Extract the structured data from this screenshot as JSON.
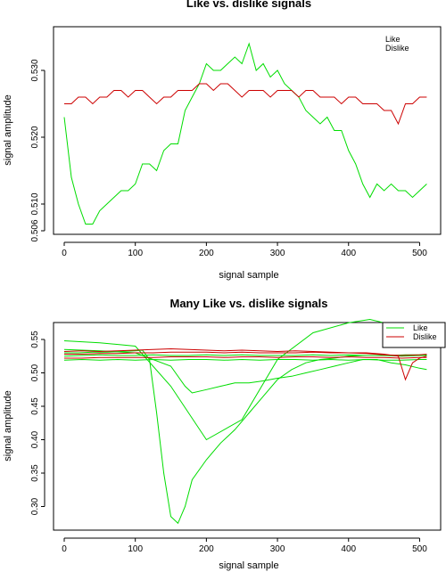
{
  "chart_data": [
    {
      "type": "line",
      "title": "Like vs. dislike signals",
      "xlabel": "signal sample",
      "ylabel": "signal amplitude",
      "xlim": [
        0,
        512
      ],
      "ylim": [
        0.506,
        0.536
      ],
      "xticks": [
        0,
        100,
        200,
        300,
        400,
        500
      ],
      "yticks": [
        0.506,
        0.51,
        0.52,
        0.53
      ],
      "ytick_labels": [
        "0.506",
        "0.510",
        "0.520",
        "0.530"
      ],
      "legend": {
        "position": "top-right",
        "entries": [
          "Like",
          "Dislike"
        ]
      },
      "series": [
        {
          "name": "Like",
          "color": "#00dd00",
          "x": [
            0,
            10,
            20,
            30,
            40,
            50,
            60,
            70,
            80,
            90,
            100,
            110,
            120,
            130,
            140,
            150,
            160,
            170,
            180,
            190,
            200,
            210,
            220,
            230,
            240,
            250,
            260,
            270,
            280,
            290,
            300,
            310,
            320,
            330,
            340,
            350,
            360,
            370,
            380,
            390,
            400,
            410,
            420,
            430,
            440,
            450,
            460,
            470,
            480,
            490,
            500,
            510
          ],
          "y": [
            0.523,
            0.514,
            0.51,
            0.507,
            0.507,
            0.509,
            0.51,
            0.511,
            0.512,
            0.512,
            0.513,
            0.516,
            0.516,
            0.515,
            0.518,
            0.519,
            0.519,
            0.524,
            0.526,
            0.528,
            0.531,
            0.53,
            0.53,
            0.531,
            0.532,
            0.531,
            0.534,
            0.53,
            0.531,
            0.529,
            0.53,
            0.528,
            0.527,
            0.526,
            0.524,
            0.523,
            0.522,
            0.523,
            0.521,
            0.521,
            0.518,
            0.516,
            0.513,
            0.511,
            0.513,
            0.512,
            0.513,
            0.512,
            0.512,
            0.511,
            0.512,
            0.513
          ]
        },
        {
          "name": "Dislike",
          "color": "#cc0000",
          "x": [
            0,
            10,
            20,
            30,
            40,
            50,
            60,
            70,
            80,
            90,
            100,
            110,
            120,
            130,
            140,
            150,
            160,
            170,
            180,
            190,
            200,
            210,
            220,
            230,
            240,
            250,
            260,
            270,
            280,
            290,
            300,
            310,
            320,
            330,
            340,
            350,
            360,
            370,
            380,
            390,
            400,
            410,
            420,
            430,
            440,
            450,
            460,
            470,
            480,
            490,
            500,
            510
          ],
          "y": [
            0.525,
            0.525,
            0.526,
            0.526,
            0.525,
            0.526,
            0.526,
            0.527,
            0.527,
            0.526,
            0.527,
            0.527,
            0.526,
            0.525,
            0.526,
            0.526,
            0.527,
            0.527,
            0.527,
            0.528,
            0.528,
            0.527,
            0.528,
            0.528,
            0.527,
            0.526,
            0.527,
            0.527,
            0.527,
            0.526,
            0.527,
            0.527,
            0.527,
            0.526,
            0.527,
            0.527,
            0.526,
            0.526,
            0.526,
            0.525,
            0.526,
            0.526,
            0.525,
            0.525,
            0.525,
            0.524,
            0.524,
            0.522,
            0.525,
            0.525,
            0.526,
            0.526
          ]
        }
      ]
    },
    {
      "type": "line",
      "title": "Many Like vs. dislike signals",
      "xlabel": "signal sample",
      "ylabel": "signal amplitude",
      "xlim": [
        0,
        512
      ],
      "ylim": [
        0.27,
        0.57
      ],
      "xticks": [
        0,
        100,
        200,
        300,
        400,
        500
      ],
      "yticks": [
        0.3,
        0.35,
        0.4,
        0.45,
        0.5,
        0.55
      ],
      "ytick_labels": [
        "0.30",
        "0.35",
        "0.40",
        "0.45",
        "0.50",
        "0.55"
      ],
      "legend": {
        "position": "top-right",
        "entries": [
          "Like",
          "Dislike"
        ]
      },
      "series": [
        {
          "name": "Like",
          "color": "#00dd00",
          "x": [
            0,
            25,
            50,
            75,
            100,
            125,
            150,
            175,
            200,
            225,
            250,
            275,
            300,
            325,
            350,
            375,
            400,
            425,
            450,
            475,
            500,
            510
          ],
          "y": [
            0.525,
            0.526,
            0.527,
            0.526,
            0.526,
            0.527,
            0.526,
            0.526,
            0.527,
            0.526,
            0.527,
            0.526,
            0.526,
            0.526,
            0.527,
            0.526,
            0.527,
            0.526,
            0.526,
            0.525,
            0.526,
            0.526
          ]
        },
        {
          "name": "Like",
          "color": "#00dd00",
          "x": [
            0,
            25,
            50,
            75,
            100,
            125,
            150,
            175,
            200,
            225,
            250,
            275,
            300,
            325,
            350,
            375,
            400,
            425,
            450,
            475,
            500,
            510
          ],
          "y": [
            0.519,
            0.52,
            0.519,
            0.52,
            0.519,
            0.52,
            0.519,
            0.52,
            0.52,
            0.519,
            0.52,
            0.519,
            0.52,
            0.52,
            0.519,
            0.52,
            0.519,
            0.52,
            0.519,
            0.519,
            0.52,
            0.52
          ]
        },
        {
          "name": "Like",
          "color": "#00dd00",
          "x": [
            0,
            20,
            40,
            60,
            80,
            100,
            110,
            120,
            130,
            140,
            150,
            160,
            170,
            180,
            200,
            220,
            240,
            260,
            280,
            300,
            320,
            340,
            360,
            380,
            400,
            420,
            440,
            460,
            480,
            500,
            510
          ],
          "y": [
            0.53,
            0.53,
            0.531,
            0.531,
            0.532,
            0.533,
            0.534,
            0.52,
            0.44,
            0.35,
            0.285,
            0.275,
            0.3,
            0.34,
            0.37,
            0.395,
            0.415,
            0.44,
            0.465,
            0.49,
            0.505,
            0.515,
            0.52,
            0.522,
            0.525,
            0.526,
            0.526,
            0.526,
            0.527,
            0.527,
            0.527
          ]
        },
        {
          "name": "Like",
          "color": "#00dd00",
          "x": [
            0,
            50,
            100,
            150,
            200,
            250,
            300,
            350,
            400,
            430,
            450,
            475,
            500,
            510
          ],
          "y": [
            0.548,
            0.545,
            0.54,
            0.48,
            0.4,
            0.43,
            0.52,
            0.56,
            0.575,
            0.58,
            0.575,
            0.56,
            0.545,
            0.54
          ]
        },
        {
          "name": "Like",
          "color": "#00dd00",
          "x": [
            0,
            50,
            100,
            150,
            170,
            180,
            200,
            220,
            240,
            260,
            280,
            300,
            320,
            340,
            360,
            380,
            400,
            420,
            440,
            460,
            480,
            500,
            510
          ],
          "y": [
            0.535,
            0.533,
            0.53,
            0.51,
            0.48,
            0.47,
            0.475,
            0.48,
            0.485,
            0.485,
            0.488,
            0.492,
            0.495,
            0.5,
            0.505,
            0.51,
            0.515,
            0.52,
            0.52,
            0.515,
            0.512,
            0.507,
            0.505
          ]
        },
        {
          "name": "Dislike",
          "color": "#cc0000",
          "x": [
            0,
            25,
            50,
            75,
            100,
            125,
            150,
            175,
            200,
            225,
            250,
            275,
            300,
            325,
            350,
            375,
            400,
            425,
            450,
            470,
            480,
            490,
            500,
            510
          ],
          "y": [
            0.528,
            0.528,
            0.529,
            0.529,
            0.53,
            0.53,
            0.531,
            0.531,
            0.531,
            0.53,
            0.531,
            0.53,
            0.53,
            0.53,
            0.531,
            0.53,
            0.53,
            0.53,
            0.528,
            0.525,
            0.49,
            0.515,
            0.522,
            0.525
          ]
        },
        {
          "name": "Dislike",
          "color": "#cc0000",
          "x": [
            0,
            25,
            50,
            75,
            100,
            125,
            150,
            175,
            200,
            225,
            250,
            275,
            300,
            325,
            350,
            375,
            400,
            425,
            450,
            475,
            500,
            510
          ],
          "y": [
            0.522,
            0.522,
            0.523,
            0.523,
            0.523,
            0.523,
            0.524,
            0.524,
            0.524,
            0.523,
            0.524,
            0.524,
            0.523,
            0.524,
            0.524,
            0.523,
            0.524,
            0.523,
            0.523,
            0.522,
            0.523,
            0.523
          ]
        },
        {
          "name": "Dislike",
          "color": "#cc0000",
          "x": [
            0,
            25,
            50,
            75,
            100,
            125,
            150,
            175,
            200,
            225,
            250,
            275,
            300,
            325,
            350,
            375,
            400,
            425,
            450,
            475,
            500,
            510
          ],
          "y": [
            0.532,
            0.533,
            0.532,
            0.533,
            0.534,
            0.535,
            0.536,
            0.535,
            0.534,
            0.533,
            0.534,
            0.533,
            0.532,
            0.533,
            0.532,
            0.531,
            0.53,
            0.529,
            0.527,
            0.526,
            0.527,
            0.528
          ]
        }
      ]
    }
  ]
}
